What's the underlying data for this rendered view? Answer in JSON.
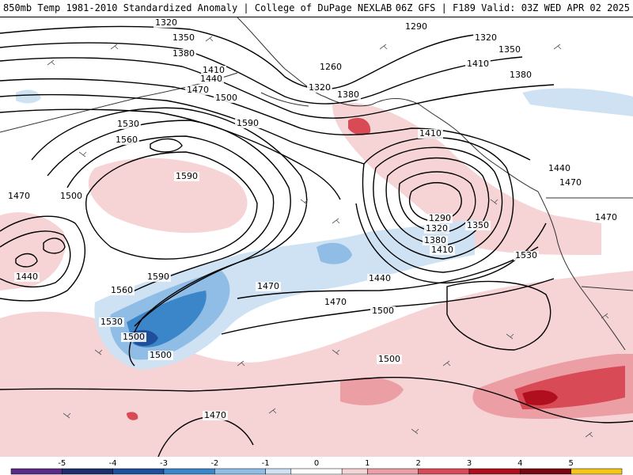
{
  "header": {
    "title_left": "850mb Temp 1981-2010 Standardized Anomaly | College of DuPage NEXLAB",
    "title_right": "06Z GFS | F189 Valid: 03Z WED APR 02 2025"
  },
  "colors": {
    "ocean": "#ffffff",
    "coast": "#333333",
    "contour": "#000000",
    "warm_light": "#f6d4d6",
    "warm_mid": "#ec9ea5",
    "warm_strong": "#d94a57",
    "warm_max": "#b0101e",
    "cool_light": "#cfe2f3",
    "cool_mid": "#8fbde6",
    "cool_strong": "#3b86c9",
    "cool_max": "#1f4f9a"
  },
  "colorbar": {
    "ticks": [
      "-5",
      "-4",
      "-3",
      "-2",
      "-1",
      "0",
      "1",
      "2",
      "3",
      "4",
      "5"
    ],
    "min": -6,
    "max": 6,
    "segments": [
      {
        "from": -6,
        "to": -5,
        "color": "#5b2a86"
      },
      {
        "from": -5,
        "to": -4,
        "color": "#1d2f6b"
      },
      {
        "from": -4,
        "to": -3,
        "color": "#1f4f9a"
      },
      {
        "from": -3,
        "to": -2,
        "color": "#3b86c9"
      },
      {
        "from": -2,
        "to": -1,
        "color": "#8fbde6"
      },
      {
        "from": -1,
        "to": -0.5,
        "color": "#cfe2f3"
      },
      {
        "from": -0.5,
        "to": 0.5,
        "color": "#ffffff"
      },
      {
        "from": 0.5,
        "to": 1,
        "color": "#f6d4d6"
      },
      {
        "from": 1,
        "to": 2,
        "color": "#ec9ea5"
      },
      {
        "from": 2,
        "to": 3,
        "color": "#d94a57"
      },
      {
        "from": 3,
        "to": 4,
        "color": "#b0101e"
      },
      {
        "from": 4,
        "to": 5,
        "color": "#7a0610"
      },
      {
        "from": 5,
        "to": 6,
        "color": "#f5c518"
      }
    ]
  },
  "height_labels": [
    {
      "text": "1320"
    },
    {
      "text": "1350"
    },
    {
      "text": "1380"
    },
    {
      "text": "1410"
    },
    {
      "text": "1440"
    },
    {
      "text": "1470"
    },
    {
      "text": "1500"
    },
    {
      "text": "1530"
    },
    {
      "text": "1560"
    },
    {
      "text": "1590"
    },
    {
      "text": "1590"
    },
    {
      "text": "1590"
    },
    {
      "text": "1290"
    },
    {
      "text": "1320"
    },
    {
      "text": "1350"
    },
    {
      "text": "1380"
    },
    {
      "text": "1260"
    },
    {
      "text": "1320"
    },
    {
      "text": "1380"
    },
    {
      "text": "1410"
    },
    {
      "text": "1410"
    },
    {
      "text": "1440"
    },
    {
      "text": "1470"
    },
    {
      "text": "1470"
    },
    {
      "text": "1290"
    },
    {
      "text": "1320"
    },
    {
      "text": "1350"
    },
    {
      "text": "1380"
    },
    {
      "text": "1410"
    },
    {
      "text": "1440"
    },
    {
      "text": "1470"
    },
    {
      "text": "1470"
    },
    {
      "text": "1500"
    },
    {
      "text": "1530"
    },
    {
      "text": "1500"
    },
    {
      "text": "1500"
    },
    {
      "text": "1470"
    },
    {
      "text": "1500"
    },
    {
      "text": "1470"
    },
    {
      "text": "1500"
    },
    {
      "text": "1440"
    },
    {
      "text": "1530"
    },
    {
      "text": "1560"
    }
  ]
}
